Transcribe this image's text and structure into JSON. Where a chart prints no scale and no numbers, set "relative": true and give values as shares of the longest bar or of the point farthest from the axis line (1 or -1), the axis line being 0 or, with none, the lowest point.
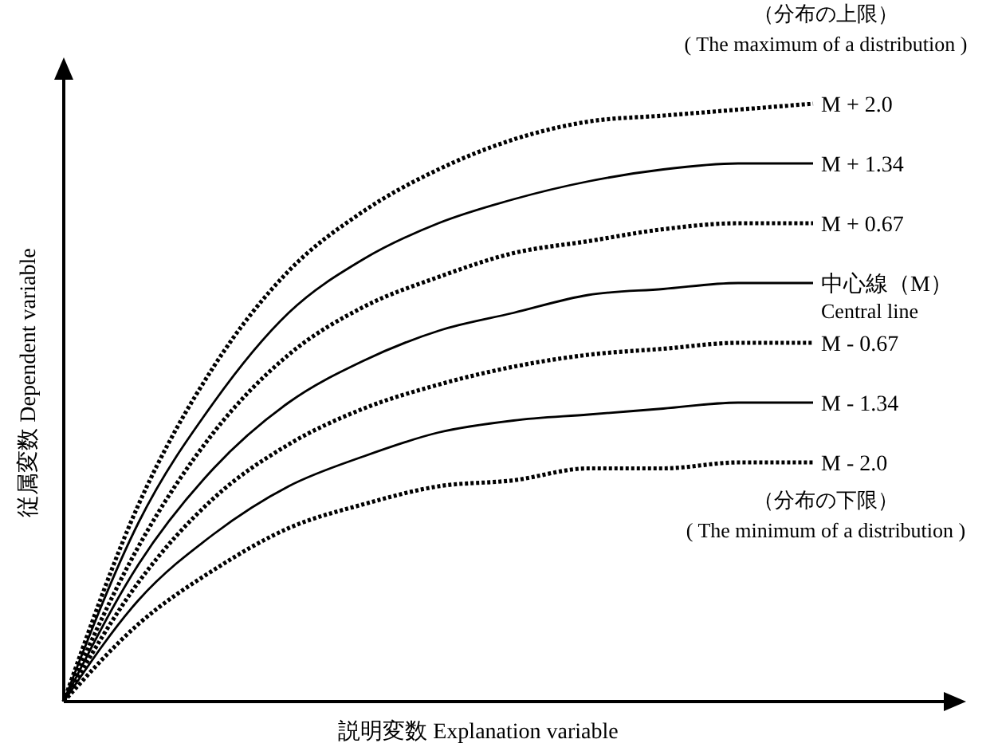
{
  "chart_data": {
    "type": "line",
    "relative": true,
    "xlabel": "説明変数  Explanation variable",
    "ylabel": "従属変数  Dependent variable",
    "categories": [
      null,
      null,
      null,
      null,
      null,
      null,
      null,
      null,
      null,
      null,
      null
    ],
    "series": [
      {
        "name": "M + 2.0",
        "color": "#000000",
        "line_style": "dotted",
        "values": [
          0,
          0.33,
          0.56,
          0.72,
          0.82,
          0.89,
          0.94,
          0.97,
          0.98,
          0.99,
          1
        ]
      },
      {
        "name": "M + 1.34",
        "color": "#000000",
        "line_style": "solid",
        "values": [
          0,
          0.3,
          0.5,
          0.65,
          0.74,
          0.8,
          0.84,
          0.87,
          0.89,
          0.9,
          0.9
        ]
      },
      {
        "name": "M + 0.67",
        "color": "#000000",
        "line_style": "dotted",
        "values": [
          0,
          0.26,
          0.45,
          0.58,
          0.66,
          0.71,
          0.75,
          0.77,
          0.79,
          0.8,
          0.8
        ]
      },
      {
        "name": "中心線（M）\nCentral line",
        "color": "#000000",
        "line_style": "solid",
        "values": [
          0,
          0.23,
          0.39,
          0.5,
          0.57,
          0.62,
          0.65,
          0.68,
          0.69,
          0.7,
          0.7
        ]
      },
      {
        "name": "M - 0.67",
        "color": "#000000",
        "line_style": "dotted",
        "values": [
          0,
          0.2,
          0.34,
          0.43,
          0.49,
          0.53,
          0.56,
          0.58,
          0.59,
          0.6,
          0.6
        ]
      },
      {
        "name": "M - 1.34",
        "color": "#000000",
        "line_style": "solid",
        "values": [
          0,
          0.17,
          0.28,
          0.36,
          0.41,
          0.45,
          0.47,
          0.48,
          0.49,
          0.5,
          0.5
        ]
      },
      {
        "name": "M - 2.0",
        "color": "#000000",
        "line_style": "dotted",
        "values": [
          0,
          0.13,
          0.22,
          0.29,
          0.33,
          0.36,
          0.37,
          0.39,
          0.39,
          0.4,
          0.4
        ]
      }
    ],
    "annotations": [
      "（分布の上限）",
      "( The maximum of a distribution )",
      "（分布の下限）",
      "( The minimum of a distribution )"
    ],
    "grid": false
  }
}
